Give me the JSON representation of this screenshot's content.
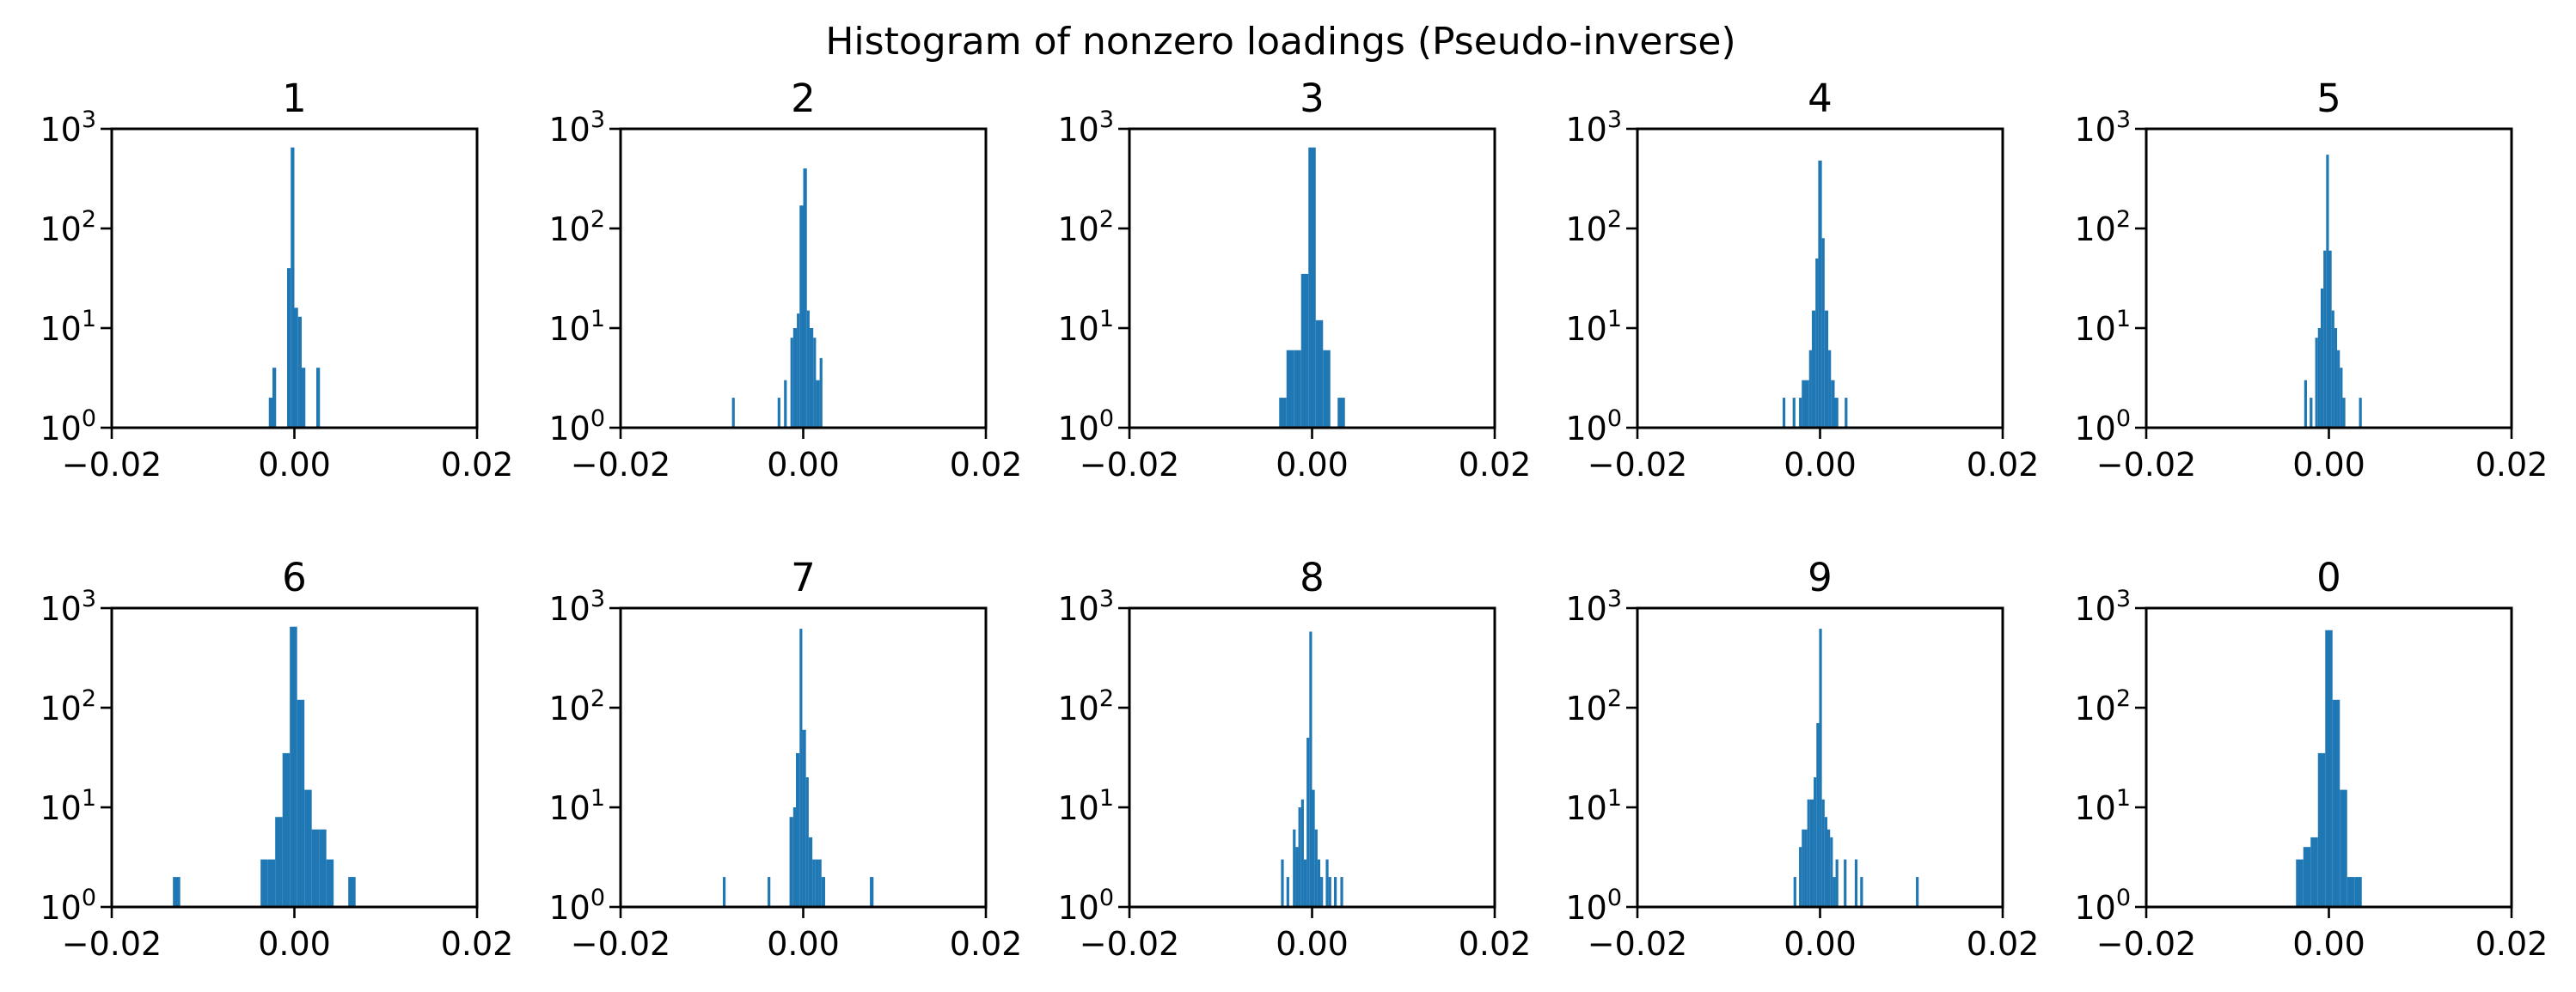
{
  "chart_data": {
    "type": "bar",
    "title": "Histogram of nonzero loadings (Pseudo-inverse)",
    "bar_color": "#1f77b4",
    "y_scale": "log",
    "xlim": [
      -0.02,
      0.02
    ],
    "ylim": [
      1,
      1000
    ],
    "x_ticks": [
      "−0.02",
      "0.00",
      "0.02"
    ],
    "y_ticks": [
      {
        "base": "10",
        "exp": "0"
      },
      {
        "base": "10",
        "exp": "1"
      },
      {
        "base": "10",
        "exp": "2"
      },
      {
        "base": "10",
        "exp": "3"
      }
    ],
    "panels": [
      {
        "title": "1",
        "bars": [
          [
            -0.0028,
            -0.0024,
            2
          ],
          [
            -0.0024,
            -0.002,
            4
          ],
          [
            -0.0008,
            -0.0004,
            40
          ],
          [
            -0.0004,
            0.0,
            650
          ],
          [
            0.0,
            0.0004,
            16
          ],
          [
            0.0004,
            0.0008,
            13
          ],
          [
            0.0008,
            0.0012,
            4
          ],
          [
            0.0024,
            0.0028,
            4
          ]
        ]
      },
      {
        "title": "2",
        "bars": [
          [
            -0.0078,
            -0.0075,
            2
          ],
          [
            -0.0028,
            -0.0025,
            2
          ],
          [
            -0.0021,
            -0.0018,
            3
          ],
          [
            -0.0014,
            -0.0011,
            8
          ],
          [
            -0.0011,
            -0.0007,
            10
          ],
          [
            -0.0007,
            -0.0004,
            14
          ],
          [
            -0.0004,
            0.0,
            170
          ],
          [
            0.0,
            0.0004,
            400
          ],
          [
            0.0004,
            0.0007,
            15
          ],
          [
            0.0007,
            0.0011,
            10
          ],
          [
            0.0011,
            0.0014,
            8
          ],
          [
            0.0014,
            0.0018,
            3
          ],
          [
            0.0018,
            0.0021,
            5
          ]
        ]
      },
      {
        "title": "3",
        "bars": [
          [
            -0.0036,
            -0.0028,
            2
          ],
          [
            -0.0028,
            -0.002,
            6
          ],
          [
            -0.002,
            -0.0012,
            6
          ],
          [
            -0.0012,
            -0.0004,
            35
          ],
          [
            -0.0004,
            0.0004,
            650
          ],
          [
            0.0004,
            0.0012,
            12
          ],
          [
            0.0012,
            0.002,
            6
          ],
          [
            0.0028,
            0.0036,
            2
          ]
        ]
      },
      {
        "title": "4",
        "bars": [
          [
            -0.0041,
            -0.0038,
            2
          ],
          [
            -0.003,
            -0.0027,
            2
          ],
          [
            -0.0023,
            -0.002,
            2
          ],
          [
            -0.002,
            -0.0016,
            3
          ],
          [
            -0.0016,
            -0.0012,
            3
          ],
          [
            -0.0012,
            -0.0009,
            6
          ],
          [
            -0.0009,
            -0.0005,
            15
          ],
          [
            -0.0005,
            -0.0002,
            50
          ],
          [
            -0.0002,
            0.0002,
            480
          ],
          [
            0.0002,
            0.0005,
            80
          ],
          [
            0.0005,
            0.0009,
            15
          ],
          [
            0.0009,
            0.0012,
            6
          ],
          [
            0.0012,
            0.0016,
            3
          ],
          [
            0.0016,
            0.002,
            2
          ],
          [
            0.0027,
            0.003,
            2
          ]
        ]
      },
      {
        "title": "5",
        "bars": [
          [
            -0.0027,
            -0.0024,
            3
          ],
          [
            -0.0021,
            -0.0018,
            2
          ],
          [
            -0.0015,
            -0.0012,
            8
          ],
          [
            -0.0012,
            -0.0009,
            10
          ],
          [
            -0.0009,
            -0.0006,
            25
          ],
          [
            -0.0006,
            -0.0003,
            60
          ],
          [
            -0.0003,
            0.0,
            550
          ],
          [
            0.0,
            0.0003,
            60
          ],
          [
            0.0003,
            0.0006,
            15
          ],
          [
            0.0006,
            0.0009,
            10
          ],
          [
            0.0009,
            0.0012,
            6
          ],
          [
            0.0012,
            0.0015,
            4
          ],
          [
            0.0015,
            0.0018,
            2
          ],
          [
            0.0033,
            0.0036,
            2
          ]
        ]
      },
      {
        "title": "6",
        "bars": [
          [
            -0.0133,
            -0.0125,
            2
          ],
          [
            -0.0037,
            -0.0029,
            3
          ],
          [
            -0.0029,
            -0.0021,
            3
          ],
          [
            -0.0021,
            -0.0013,
            8
          ],
          [
            -0.0013,
            -0.0005,
            35
          ],
          [
            -0.0005,
            0.0003,
            650
          ],
          [
            0.0003,
            0.0011,
            120
          ],
          [
            0.0011,
            0.0019,
            15
          ],
          [
            0.0019,
            0.0027,
            6
          ],
          [
            0.0027,
            0.0035,
            6
          ],
          [
            0.0035,
            0.0043,
            3
          ],
          [
            0.0059,
            0.0067,
            2
          ]
        ]
      },
      {
        "title": "7",
        "bars": [
          [
            -0.0088,
            -0.0085,
            2
          ],
          [
            -0.0039,
            -0.0036,
            2
          ],
          [
            -0.0015,
            -0.0011,
            8
          ],
          [
            -0.0011,
            -0.0008,
            10
          ],
          [
            -0.0008,
            -0.0004,
            35
          ],
          [
            -0.0004,
            -0.0001,
            620
          ],
          [
            -0.0001,
            0.0003,
            60
          ],
          [
            0.0003,
            0.0006,
            20
          ],
          [
            0.0006,
            0.001,
            5
          ],
          [
            0.001,
            0.0013,
            3
          ],
          [
            0.0013,
            0.0017,
            3
          ],
          [
            0.0017,
            0.002,
            3
          ],
          [
            0.002,
            0.0024,
            2
          ],
          [
            0.0073,
            0.0077,
            2
          ]
        ]
      },
      {
        "title": "8",
        "bars": [
          [
            -0.0034,
            -0.0031,
            3
          ],
          [
            -0.0028,
            -0.0025,
            2
          ],
          [
            -0.0021,
            -0.0018,
            6
          ],
          [
            -0.0018,
            -0.0015,
            4
          ],
          [
            -0.0015,
            -0.0012,
            10
          ],
          [
            -0.0012,
            -0.0009,
            12
          ],
          [
            -0.0009,
            -0.0006,
            3
          ],
          [
            -0.0006,
            -0.0003,
            50
          ],
          [
            -0.0003,
            0.0,
            580
          ],
          [
            0.0,
            0.0003,
            15
          ],
          [
            0.0003,
            0.0006,
            6
          ],
          [
            0.0006,
            0.0009,
            3
          ],
          [
            0.0009,
            0.0012,
            2
          ],
          [
            0.0015,
            0.0018,
            3
          ],
          [
            0.0018,
            0.0021,
            2
          ],
          [
            0.0024,
            0.0027,
            2
          ],
          [
            0.0031,
            0.0034,
            2
          ]
        ]
      },
      {
        "title": "9",
        "bars": [
          [
            -0.0029,
            -0.0026,
            2
          ],
          [
            -0.0023,
            -0.002,
            4
          ],
          [
            -0.002,
            -0.0017,
            6
          ],
          [
            -0.0017,
            -0.0014,
            6
          ],
          [
            -0.0014,
            -0.0011,
            12
          ],
          [
            -0.0011,
            -0.0007,
            12
          ],
          [
            -0.0007,
            -0.0004,
            20
          ],
          [
            -0.0004,
            -0.0001,
            70
          ],
          [
            -0.0001,
            0.0002,
            620
          ],
          [
            0.0002,
            0.0005,
            12
          ],
          [
            0.0005,
            0.0008,
            8
          ],
          [
            0.0008,
            0.0011,
            6
          ],
          [
            0.0011,
            0.0014,
            5
          ],
          [
            0.0014,
            0.0017,
            2
          ],
          [
            0.0017,
            0.002,
            3
          ],
          [
            0.0026,
            0.0029,
            3
          ],
          [
            0.0038,
            0.0041,
            3
          ],
          [
            0.0044,
            0.0047,
            2
          ],
          [
            0.0105,
            0.0108,
            2
          ]
        ]
      },
      {
        "title": "0",
        "bars": [
          [
            -0.0036,
            -0.0028,
            3
          ],
          [
            -0.0028,
            -0.002,
            4
          ],
          [
            -0.002,
            -0.0012,
            5
          ],
          [
            -0.0012,
            -0.0004,
            35
          ],
          [
            -0.0004,
            0.0004,
            600
          ],
          [
            0.0004,
            0.0012,
            120
          ],
          [
            0.0012,
            0.002,
            15
          ],
          [
            0.002,
            0.0028,
            2
          ],
          [
            0.0028,
            0.0036,
            2
          ]
        ]
      }
    ]
  }
}
